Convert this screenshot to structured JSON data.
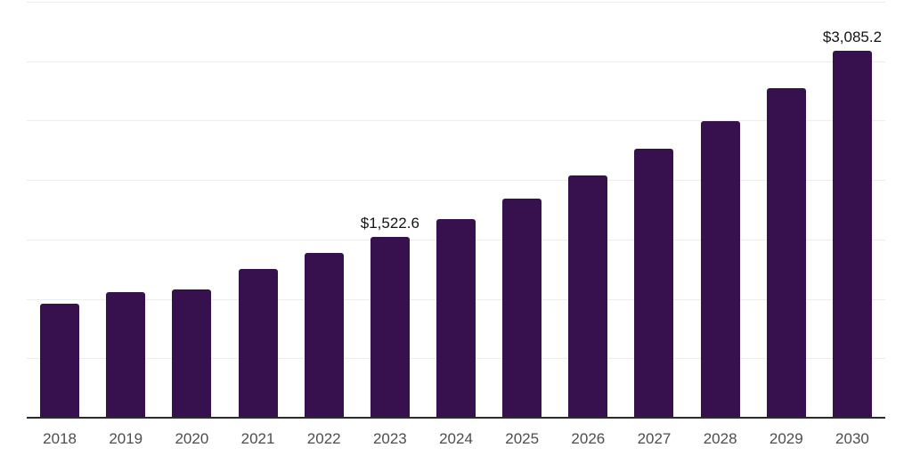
{
  "chart_data": {
    "type": "bar",
    "title": "",
    "xlabel": "",
    "ylabel": "",
    "categories": [
      "2018",
      "2019",
      "2020",
      "2021",
      "2022",
      "2023",
      "2024",
      "2025",
      "2026",
      "2027",
      "2028",
      "2029",
      "2030"
    ],
    "values": [
      960,
      1060,
      1080,
      1255,
      1385,
      1522.6,
      1670,
      1845,
      2035,
      2260,
      2495,
      2775,
      3085.2
    ],
    "data_labels": {
      "2023": "$1,522.6",
      "2030": "$3,085.2"
    },
    "ylim": [
      0,
      3500
    ],
    "ytick_step": 500,
    "y_axis_labels_visible": false,
    "grid": "horizontal",
    "legend": "none"
  },
  "colors": {
    "bar": "#36114D",
    "gridline": "#ededed",
    "axis_line": "#2b2b2b",
    "tick_label": "#4d4d4d",
    "data_label": "#141414",
    "background": "#ffffff"
  }
}
